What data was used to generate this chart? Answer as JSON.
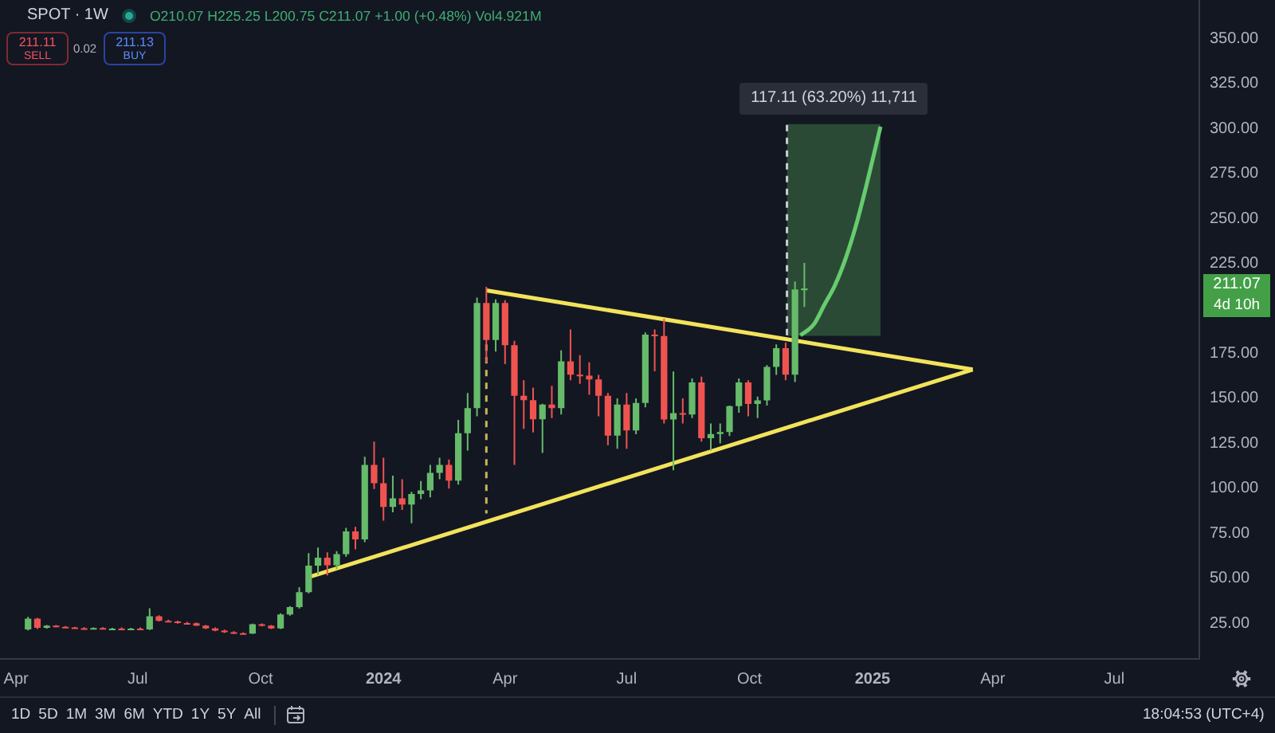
{
  "chart_data": {
    "type": "candlestick",
    "title": "SPOT · 1W",
    "x": [
      "2023-04-10",
      "2023-04-17",
      "2023-04-24",
      "2023-05-01",
      "2023-05-08",
      "2023-05-15",
      "2023-05-22",
      "2023-05-29",
      "2023-06-05",
      "2023-06-12",
      "2023-06-19",
      "2023-06-26",
      "2023-07-03",
      "2023-07-10",
      "2023-07-17",
      "2023-07-24",
      "2023-07-31",
      "2023-08-07",
      "2023-08-14",
      "2023-08-21",
      "2023-08-28",
      "2023-09-04",
      "2023-09-11",
      "2023-09-18",
      "2023-09-25",
      "2023-10-02",
      "2023-10-09",
      "2023-10-16",
      "2023-10-23",
      "2023-10-30",
      "2023-11-06",
      "2023-11-13",
      "2023-11-20",
      "2023-11-27",
      "2023-12-04",
      "2023-12-11",
      "2023-12-18",
      "2023-12-25",
      "2024-01-01",
      "2024-01-08",
      "2024-01-15",
      "2024-01-22",
      "2024-01-29",
      "2024-02-05",
      "2024-02-12",
      "2024-02-19",
      "2024-02-26",
      "2024-03-04",
      "2024-03-11",
      "2024-03-18",
      "2024-03-25",
      "2024-04-01",
      "2024-04-08",
      "2024-04-15",
      "2024-04-22",
      "2024-04-29",
      "2024-05-06",
      "2024-05-13",
      "2024-05-20",
      "2024-05-27",
      "2024-06-03",
      "2024-06-10",
      "2024-06-17",
      "2024-06-24",
      "2024-07-01",
      "2024-07-08",
      "2024-07-15",
      "2024-07-22",
      "2024-07-29",
      "2024-08-05",
      "2024-08-12",
      "2024-08-19",
      "2024-08-26",
      "2024-09-02",
      "2024-09-09",
      "2024-09-16",
      "2024-09-23",
      "2024-09-30",
      "2024-10-07",
      "2024-10-14",
      "2024-10-21",
      "2024-10-28",
      "2024-11-04",
      "2024-11-11"
    ],
    "ohlc": [
      [
        21.5,
        28.5,
        21.0,
        27.5
      ],
      [
        27.5,
        28.0,
        21.8,
        22.4
      ],
      [
        22.4,
        24.0,
        22.0,
        23.6
      ],
      [
        23.6,
        24.0,
        22.6,
        23.0
      ],
      [
        23.0,
        23.4,
        22.2,
        22.6
      ],
      [
        22.6,
        23.0,
        21.8,
        22.2
      ],
      [
        22.2,
        22.8,
        21.6,
        22.0
      ],
      [
        22.0,
        22.6,
        21.4,
        22.3
      ],
      [
        22.3,
        22.8,
        21.4,
        21.8
      ],
      [
        21.8,
        22.4,
        21.2,
        22.0
      ],
      [
        22.0,
        22.6,
        21.4,
        21.8
      ],
      [
        21.8,
        22.4,
        21.2,
        22.0
      ],
      [
        22.0,
        22.6,
        21.2,
        21.5
      ],
      [
        21.5,
        33.3,
        21.2,
        28.9
      ],
      [
        28.9,
        29.4,
        26.0,
        26.3
      ],
      [
        26.3,
        27.0,
        25.6,
        26.0
      ],
      [
        26.0,
        26.4,
        24.8,
        25.1
      ],
      [
        25.1,
        25.8,
        24.6,
        25.0
      ],
      [
        25.0,
        25.4,
        23.4,
        23.6
      ],
      [
        23.6,
        24.0,
        21.8,
        22.1
      ],
      [
        22.1,
        22.6,
        20.6,
        20.9
      ],
      [
        20.9,
        21.4,
        19.6,
        20.0
      ],
      [
        20.0,
        20.6,
        19.0,
        19.4
      ],
      [
        19.4,
        19.9,
        18.9,
        19.2
      ],
      [
        19.2,
        24.8,
        19.0,
        24.4
      ],
      [
        24.4,
        24.9,
        23.2,
        23.6
      ],
      [
        23.6,
        24.0,
        21.8,
        22.1
      ],
      [
        22.1,
        30.5,
        21.8,
        29.8
      ],
      [
        29.8,
        34.5,
        29.2,
        33.9
      ],
      [
        33.9,
        45.0,
        33.2,
        42.2
      ],
      [
        42.2,
        64.0,
        41.6,
        57.0
      ],
      [
        57.0,
        67.0,
        52.0,
        61.4
      ],
      [
        61.4,
        64.4,
        51.6,
        57.2
      ],
      [
        57.2,
        65.0,
        55.0,
        63.4
      ],
      [
        63.4,
        78.0,
        62.0,
        76.0
      ],
      [
        76.0,
        78.6,
        66.0,
        71.6
      ],
      [
        71.6,
        117.5,
        70.0,
        113.0
      ],
      [
        113.0,
        126.0,
        99.6,
        102.8
      ],
      [
        102.8,
        117.0,
        82.0,
        89.6
      ],
      [
        89.6,
        107.0,
        86.6,
        94.4
      ],
      [
        94.4,
        105.0,
        88.0,
        91.0
      ],
      [
        91.0,
        98.0,
        80.6,
        96.8
      ],
      [
        96.8,
        104.0,
        94.0,
        98.8
      ],
      [
        98.8,
        113.0,
        95.0,
        108.6
      ],
      [
        108.6,
        117.0,
        105.0,
        113.0
      ],
      [
        113.0,
        116.0,
        99.8,
        104.2
      ],
      [
        104.2,
        138.0,
        102.0,
        130.6
      ],
      [
        130.6,
        153.0,
        121.0,
        144.6
      ],
      [
        144.6,
        206.0,
        140.0,
        203.0
      ],
      [
        203.0,
        212.0,
        170.0,
        182.4
      ],
      [
        182.4,
        205.0,
        176.0,
        203.0
      ],
      [
        203.0,
        204.5,
        169.0,
        179.5
      ],
      [
        179.5,
        182.0,
        113.0,
        151.4
      ],
      [
        151.4,
        160.0,
        133.0,
        149.0
      ],
      [
        149.0,
        156.0,
        131.0,
        138.3
      ],
      [
        138.3,
        147.0,
        119.6,
        146.5
      ],
      [
        146.5,
        157.0,
        139.0,
        144.5
      ],
      [
        144.5,
        176.6,
        141.0,
        170.6
      ],
      [
        170.6,
        188.3,
        160.0,
        163.2
      ],
      [
        163.2,
        174.0,
        158.0,
        162.6
      ],
      [
        162.6,
        170.0,
        152.0,
        160.5
      ],
      [
        160.5,
        163.0,
        140.0,
        151.4
      ],
      [
        151.4,
        153.0,
        124.0,
        129.3
      ],
      [
        129.3,
        150.0,
        122.0,
        146.5
      ],
      [
        146.5,
        153.0,
        122.0,
        132.2
      ],
      [
        132.2,
        150.0,
        130.0,
        147.4
      ],
      [
        147.4,
        186.6,
        145.0,
        185.4
      ],
      [
        185.4,
        188.3,
        165.0,
        184.6
      ],
      [
        184.6,
        194.2,
        136.0,
        138.2
      ],
      [
        138.2,
        164.9,
        110.0,
        141.8
      ],
      [
        141.8,
        150.0,
        136.0,
        141.0
      ],
      [
        141.0,
        161.0,
        139.0,
        158.8
      ],
      [
        158.8,
        162.0,
        126.0,
        127.8
      ],
      [
        127.8,
        136.0,
        121.0,
        130.1
      ],
      [
        130.1,
        136.0,
        125.0,
        131.3
      ],
      [
        131.3,
        146.0,
        129.0,
        145.6
      ],
      [
        145.6,
        161.0,
        142.0,
        158.8
      ],
      [
        158.8,
        160.0,
        140.0,
        146.9
      ],
      [
        146.9,
        151.0,
        139.0,
        148.9
      ],
      [
        148.9,
        168.5,
        146.0,
        167.5
      ],
      [
        167.5,
        180.0,
        163.0,
        177.9
      ],
      [
        177.9,
        181.0,
        160.0,
        163.2
      ],
      [
        163.2,
        215.0,
        159.0,
        210.5
      ],
      [
        210.07,
        225.25,
        200.75,
        211.07
      ]
    ],
    "colors": [
      "#66bb6a",
      "#ef5350",
      "#66bb6a",
      "#ef5350",
      "#ef5350",
      "#ef5350",
      "#ef5350",
      "#66bb6a",
      "#ef5350",
      "#66bb6a",
      "#ef5350",
      "#66bb6a",
      "#ef5350",
      "#66bb6a",
      "#ef5350",
      "#ef5350",
      "#ef5350",
      "#ef5350",
      "#ef5350",
      "#ef5350",
      "#ef5350",
      "#ef5350",
      "#ef5350",
      "#ef5350",
      "#66bb6a",
      "#ef5350",
      "#ef5350",
      "#66bb6a",
      "#66bb6a",
      "#66bb6a",
      "#66bb6a",
      "#66bb6a",
      "#ef5350",
      "#66bb6a",
      "#66bb6a",
      "#ef5350",
      "#66bb6a",
      "#ef5350",
      "#ef5350",
      "#66bb6a",
      "#ef5350",
      "#66bb6a",
      "#66bb6a",
      "#66bb6a",
      "#66bb6a",
      "#ef5350",
      "#66bb6a",
      "#66bb6a",
      "#66bb6a",
      "#ef5350",
      "#66bb6a",
      "#ef5350",
      "#ef5350",
      "#ef5350",
      "#ef5350",
      "#66bb6a",
      "#ef5350",
      "#66bb6a",
      "#ef5350",
      "#ef5350",
      "#ef5350",
      "#ef5350",
      "#ef5350",
      "#66bb6a",
      "#ef5350",
      "#66bb6a",
      "#66bb6a",
      "#ef5350",
      "#ef5350",
      "#66bb6a",
      "#ef5350",
      "#66bb6a",
      "#ef5350",
      "#66bb6a",
      "#66bb6a",
      "#66bb6a",
      "#66bb6a",
      "#ef5350",
      "#66bb6a",
      "#66bb6a",
      "#66bb6a",
      "#ef5350",
      "#66bb6a",
      "#66bb6a"
    ],
    "series": [
      {
        "type": "bar",
        "x": [
          "2024-12-03"
        ],
        "values": [
          117.11
        ],
        "base": [
          185
        ],
        "color": "#2b4a36"
      },
      {
        "type": "line",
        "x": [
          "2024-10-29",
          "2024-10-29"
        ],
        "values": [
          302,
          185
        ],
        "color": "#c8ccd4",
        "line_style": "dashed"
      },
      {
        "type": "line",
        "x": [
          "2024-03-18",
          "2024-03-18"
        ],
        "values": [
          180,
          86
        ],
        "color": "#c9b458",
        "line_style": "dashed"
      },
      {
        "type": "line",
        "x": [
          "2024-03-18",
          "2025-03-17"
        ],
        "values": [
          210,
          166
        ],
        "color": "#f2e35b"
      },
      {
        "type": "line",
        "x": [
          "2023-11-08",
          "2025-03-17"
        ],
        "values": [
          51,
          166
        ],
        "color": "#f2e35b"
      },
      {
        "type": "line",
        "x": [
          "2024-11-08",
          "2024-11-18",
          "2024-11-26",
          "2024-12-04",
          "2024-12-12",
          "2024-12-20",
          "2024-12-28",
          "2025-01-07"
        ],
        "values": [
          185,
          191,
          202,
          213,
          228,
          247,
          270,
          301
        ],
        "color": "#66cc6e"
      }
    ],
    "xlim": [
      "2023-03-20",
      "2025-09-02"
    ],
    "xticks": [
      {
        "value": "2023-04-01",
        "label": "Apr"
      },
      {
        "value": "2023-07-01",
        "label": "Jul"
      },
      {
        "value": "2023-10-01",
        "label": "Oct"
      },
      {
        "value": "2024-01-01",
        "label": "2024"
      },
      {
        "value": "2024-04-01",
        "label": "Apr"
      },
      {
        "value": "2024-07-01",
        "label": "Jul"
      },
      {
        "value": "2024-10-01",
        "label": "Oct"
      },
      {
        "value": "2025-01-01",
        "label": "2025"
      },
      {
        "value": "2025-04-01",
        "label": "Apr"
      },
      {
        "value": "2025-07-01",
        "label": "Jul"
      }
    ],
    "ylim": [
      5.6,
      371.4
    ],
    "yticks": [
      {
        "value": 25,
        "label": "25.00"
      },
      {
        "value": 50,
        "label": "50.00"
      },
      {
        "value": 75,
        "label": "75.00"
      },
      {
        "value": 100,
        "label": "100.00"
      },
      {
        "value": 125,
        "label": "125.00"
      },
      {
        "value": 150,
        "label": "150.00"
      },
      {
        "value": 175,
        "label": "175.00"
      },
      {
        "value": 225,
        "label": "225.00"
      },
      {
        "value": 250,
        "label": "250.00"
      },
      {
        "value": 275,
        "label": "275.00"
      },
      {
        "value": 300,
        "label": "300.00"
      },
      {
        "value": 325,
        "label": "325.00"
      },
      {
        "value": 350,
        "label": "350.00"
      }
    ],
    "annotations": [
      "O210.07 H225.25 L200.75 C211.07 +1.00 (+0.48%) Vol4.921M",
      "211.11",
      "SELL",
      "0.02",
      "211.13",
      "BUY",
      {
        "text": "117.11 (63.20%) 11,711",
        "x": "2024-12-03",
        "y": 302.11
      },
      "211.07",
      "4d 10h",
      "1D",
      "5D",
      "1M",
      "3M",
      "6M",
      "YTD",
      "1Y",
      "5Y",
      "All",
      "18:04:53 (UTC+4)"
    ]
  }
}
